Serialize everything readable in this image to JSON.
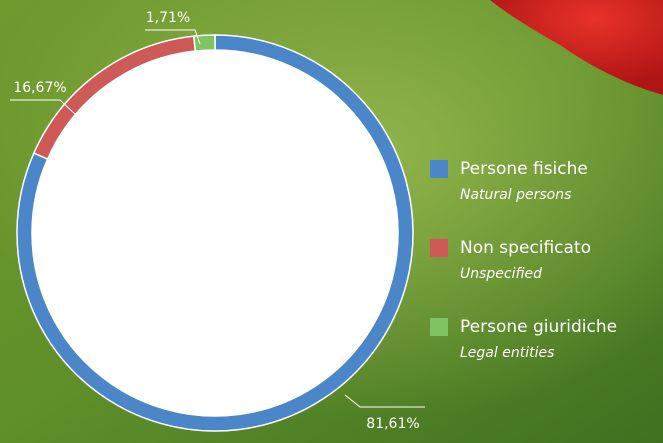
{
  "chart_data": {
    "type": "pie",
    "categories": [
      "Persone fisiche",
      "Non specificato",
      "Persone giuridiche"
    ],
    "subcategories": [
      "Natural persons",
      "Unspecified",
      "Legal entities"
    ],
    "values": [
      81.61,
      16.67,
      1.71
    ],
    "value_labels": [
      "81,61%",
      "16,67%",
      "1,71%"
    ],
    "colors": [
      "#4a86c8",
      "#cd5a57",
      "#7dc562"
    ]
  }
}
